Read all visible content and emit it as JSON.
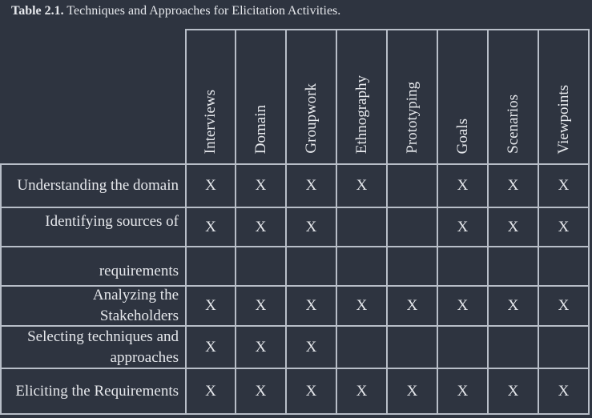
{
  "caption": {
    "label": "Table 2.1.",
    "text": " Techniques and Approaches for Elicitation Activities."
  },
  "columns": [
    "Interviews",
    "Domain",
    "Groupwork",
    "Ethnography",
    "Prototyping",
    "Goals",
    "Scenarios",
    "Viewpoints"
  ],
  "rows": [
    {
      "label": "Understanding the domain",
      "marks": [
        "X",
        "X",
        "X",
        "X",
        "",
        "X",
        "X",
        "X"
      ]
    },
    {
      "label": "Identifying sources of",
      "marks": [
        "X",
        "X",
        "X",
        "",
        "",
        "X",
        "X",
        "X"
      ]
    },
    {
      "label": "requirements",
      "marks": [
        "",
        "",
        "",
        "",
        "",
        "",
        "",
        ""
      ]
    },
    {
      "label": "Analyzing the Stakeholders",
      "marks": [
        "X",
        "X",
        "X",
        "X",
        "X",
        "X",
        "X",
        "X"
      ]
    },
    {
      "label": "Selecting techniques and approaches",
      "marks": [
        "X",
        "X",
        "X",
        "",
        "",
        "",
        "",
        ""
      ]
    },
    {
      "label": "Eliciting the Requirements",
      "marks": [
        "X",
        "X",
        "X",
        "X",
        "X",
        "X",
        "X",
        "X"
      ]
    }
  ]
}
